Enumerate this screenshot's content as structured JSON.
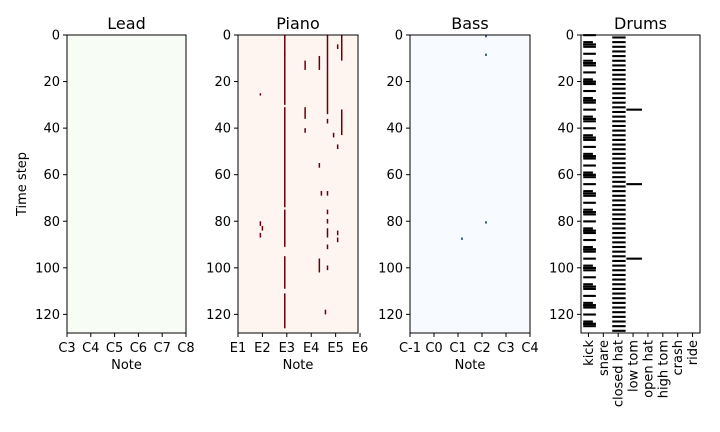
{
  "chart_data": {
    "type": "heatmap",
    "figure": {
      "ylabel": "Time step"
    },
    "panels": [
      {
        "title": "Lead",
        "xlabel": "Note",
        "cmap": "Greens",
        "bg": "#f7fcf5",
        "on": "#00441b",
        "xlim": [
          0,
          60
        ],
        "ylim": [
          0,
          128
        ],
        "xticks": [
          {
            "x": 0,
            "label": "C3"
          },
          {
            "x": 12,
            "label": "C4"
          },
          {
            "x": 24,
            "label": "C5"
          },
          {
            "x": 36,
            "label": "C6"
          },
          {
            "x": 48,
            "label": "C7"
          },
          {
            "x": 60,
            "label": "C8"
          }
        ],
        "yticks": [
          0,
          20,
          40,
          60,
          80,
          100,
          120
        ],
        "notes": []
      },
      {
        "title": "Piano",
        "xlabel": "Note",
        "cmap": "Reds",
        "bg": "#fff5f0",
        "on": "#67000d",
        "xlim": [
          0,
          59
        ],
        "ylim": [
          0,
          128
        ],
        "xticks": [
          {
            "x": 0,
            "label": "E1"
          },
          {
            "x": 12,
            "label": "E2"
          },
          {
            "x": 24,
            "label": "E3"
          },
          {
            "x": 36,
            "label": "E4"
          },
          {
            "x": 48,
            "label": "E5"
          },
          {
            "x": 60,
            "label": "E6"
          }
        ],
        "yticks": [
          0,
          20,
          40,
          60,
          80,
          100,
          120
        ],
        "notes": [
          {
            "x": 23,
            "t0": 8,
            "t1": 9
          },
          {
            "x": 11,
            "t0": 25,
            "t1": 26
          },
          {
            "x": 11,
            "t0": 80,
            "t1": 82
          },
          {
            "x": 12,
            "t0": 82,
            "t1": 84
          },
          {
            "x": 11,
            "t0": 85,
            "t1": 87
          },
          {
            "x": 23,
            "t0": 0,
            "t1": 30
          },
          {
            "x": 23,
            "t0": 31,
            "t1": 74
          },
          {
            "x": 23,
            "t0": 75,
            "t1": 91
          },
          {
            "x": 23,
            "t0": 95,
            "t1": 109
          },
          {
            "x": 23,
            "t0": 111,
            "t1": 126
          },
          {
            "x": 33,
            "t0": 11,
            "t1": 15
          },
          {
            "x": 33,
            "t0": 31,
            "t1": 36
          },
          {
            "x": 33,
            "t0": 40,
            "t1": 42
          },
          {
            "x": 40,
            "t0": 9,
            "t1": 15
          },
          {
            "x": 40,
            "t0": 55,
            "t1": 57
          },
          {
            "x": 40,
            "t0": 96,
            "t1": 102
          },
          {
            "x": 41,
            "t0": 67,
            "t1": 69
          },
          {
            "x": 44,
            "t0": 67,
            "t1": 69
          },
          {
            "x": 44,
            "t0": 0,
            "t1": 34
          },
          {
            "x": 44,
            "t0": 36,
            "t1": 38
          },
          {
            "x": 44,
            "t0": 75,
            "t1": 77
          },
          {
            "x": 44,
            "t0": 79,
            "t1": 81
          },
          {
            "x": 44,
            "t0": 83,
            "t1": 87
          },
          {
            "x": 44,
            "t0": 90,
            "t1": 92
          },
          {
            "x": 44,
            "t0": 99,
            "t1": 101
          },
          {
            "x": 43,
            "t0": 118,
            "t1": 120
          },
          {
            "x": 47,
            "t0": 42,
            "t1": 44
          },
          {
            "x": 49,
            "t0": 4,
            "t1": 6
          },
          {
            "x": 49,
            "t0": 47,
            "t1": 49
          },
          {
            "x": 49,
            "t0": 84,
            "t1": 86
          },
          {
            "x": 49,
            "t0": 87,
            "t1": 89
          },
          {
            "x": 51,
            "t0": 0,
            "t1": 11
          },
          {
            "x": 51,
            "t0": 32,
            "t1": 43
          }
        ]
      },
      {
        "title": "Bass",
        "xlabel": "Note",
        "cmap": "Blues",
        "bg": "#f7fbff",
        "on": "#08306b",
        "xlim": [
          0,
          60
        ],
        "ylim": [
          0,
          128
        ],
        "xticks": [
          {
            "x": 0,
            "label": "C-1"
          },
          {
            "x": 12,
            "label": "C0"
          },
          {
            "x": 24,
            "label": "C1"
          },
          {
            "x": 36,
            "label": "C2"
          },
          {
            "x": 48,
            "label": "C3"
          },
          {
            "x": 60,
            "label": "C4"
          }
        ],
        "yticks": [
          0,
          20,
          40,
          60,
          80,
          100,
          120
        ],
        "notes": [
          {
            "x": 38,
            "t0": 0,
            "t1": 1
          },
          {
            "x": 38,
            "t0": 8,
            "t1": 9
          },
          {
            "x": 38,
            "t0": 80,
            "t1": 81
          },
          {
            "x": 26,
            "t0": 87,
            "t1": 88
          }
        ]
      },
      {
        "title": "Drums",
        "xlabel": "",
        "cmap": "binary",
        "bg": "#ffffff",
        "on": "#000000",
        "xlim": [
          0,
          8
        ],
        "ylim": [
          0,
          128
        ],
        "xticks": [
          {
            "x": 0.5,
            "label": "kick"
          },
          {
            "x": 1.5,
            "label": "snare"
          },
          {
            "x": 2.5,
            "label": "closed hat"
          },
          {
            "x": 3.5,
            "label": "low tom"
          },
          {
            "x": 4.5,
            "label": "open hat"
          },
          {
            "x": 5.5,
            "label": "high tom"
          },
          {
            "x": 6.5,
            "label": "crash"
          },
          {
            "x": 7.5,
            "label": "ride"
          }
        ],
        "yticks": [
          0,
          20,
          40,
          60,
          80,
          100,
          120
        ],
        "hits": [
          {
            "x": 0,
            "steps": [
              0,
              4,
              8,
              12,
              16,
              20,
              24,
              28,
              32,
              36,
              40,
              44,
              48,
              52,
              56,
              60,
              64,
              68,
              72,
              76,
              80,
              84,
              88,
              92,
              96,
              100,
              104,
              108,
              112,
              116,
              120,
              124
            ]
          },
          {
            "x": 0.1,
            "steps": [
              3,
              4,
              11,
              12,
              19,
              20,
              27,
              28,
              35,
              36,
              43,
              44,
              51,
              52,
              59,
              60,
              67,
              68,
              75,
              76,
              83,
              84,
              91,
              92,
              99,
              100,
              107,
              108,
              115,
              116,
              123,
              124
            ]
          },
          {
            "x": 1.1,
            "steps": [
              4,
              5,
              12,
              13,
              20,
              21,
              28,
              29,
              36,
              37,
              44,
              45,
              52,
              53,
              60,
              61,
              68,
              69,
              76,
              77,
              84,
              85,
              92,
              93,
              100,
              101,
              108,
              109,
              116,
              117,
              124,
              125
            ]
          },
          {
            "x": 2.7,
            "steps": [
              1,
              3,
              5,
              7,
              9,
              11,
              13,
              15,
              17,
              19,
              21,
              23,
              25,
              27,
              29,
              31,
              33,
              35,
              37,
              39,
              41,
              43,
              45,
              47,
              49,
              51,
              53,
              55,
              57,
              59,
              61,
              63,
              65,
              67,
              69,
              71,
              73,
              75,
              77,
              79,
              81,
              83,
              85,
              87,
              89,
              91,
              93,
              95,
              97,
              99,
              101,
              103,
              105,
              107,
              109,
              111,
              113,
              115,
              117,
              119,
              121,
              123,
              125,
              127
            ]
          },
          {
            "x": 4.3,
            "steps": [
              32,
              64,
              96
            ]
          }
        ],
        "barDefs": [
          {
            "x0": 0.15,
            "x1": 1.0
          },
          {
            "x0": 0.15,
            "x1": 0.8
          },
          {
            "x0": 0.15,
            "x1": 1.0
          },
          {
            "x0": 2.1,
            "x1": 3.0
          },
          {
            "x0": 3.05,
            "x1": 4.1
          }
        ]
      }
    ]
  }
}
